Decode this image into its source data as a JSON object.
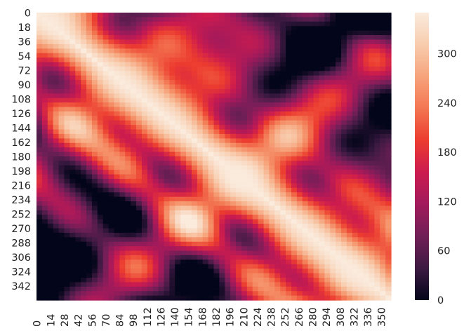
{
  "chart_data": {
    "type": "heatmap",
    "title": "",
    "xlabel": "",
    "ylabel": "",
    "x_range": [
      0,
      359
    ],
    "y_range": [
      0,
      359
    ],
    "x_ticks": [
      "0",
      "14",
      "28",
      "42",
      "56",
      "70",
      "84",
      "98",
      "112",
      "126",
      "140",
      "154",
      "168",
      "182",
      "196",
      "210",
      "224",
      "238",
      "252",
      "266",
      "280",
      "294",
      "308",
      "322",
      "336",
      "350"
    ],
    "y_ticks": [
      "0",
      "18",
      "36",
      "54",
      "72",
      "90",
      "108",
      "126",
      "144",
      "162",
      "180",
      "198",
      "216",
      "234",
      "252",
      "270",
      "288",
      "306",
      "324",
      "342"
    ],
    "colorbar": {
      "min": 0,
      "max": 350,
      "ticks": [
        "0",
        "60",
        "120",
        "180",
        "240",
        "300"
      ],
      "colormap": "rocket",
      "colors": [
        "#03051a",
        "#3d1a42",
        "#701f57",
        "#a11a5b",
        "#cb1b4f",
        "#ec3c30",
        "#f37651",
        "#f6a47c",
        "#f8ccae",
        "#faebdd"
      ]
    },
    "structure": "symmetric distance-like matrix: value 0 on the diagonal rising to ~350 far from it, with dark low-value bands off-diagonal",
    "grid": false,
    "legend": "colorbar-right"
  }
}
